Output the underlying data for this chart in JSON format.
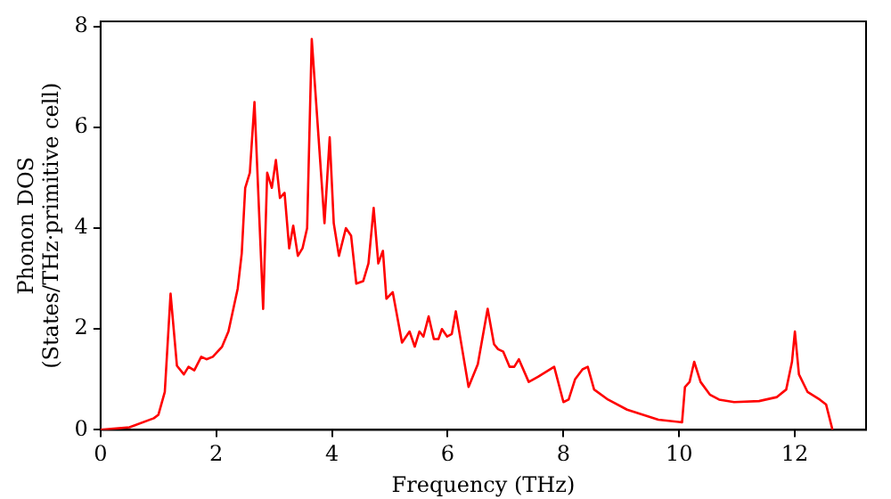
{
  "chart_data": {
    "type": "line",
    "xlabel": "Frequency (THz)",
    "ylabel": "Phonon DOS\n(States/THz·primitive cell)",
    "xlim": [
      0,
      13.23
    ],
    "ylim": [
      0,
      8.1
    ],
    "xticks": [
      0,
      2,
      4,
      6,
      8,
      10,
      12
    ],
    "yticks": [
      0,
      2,
      4,
      6,
      8
    ],
    "grid": false,
    "legend": false,
    "marker": "none",
    "line_style": "solid",
    "series": [
      {
        "color": "#ff0000",
        "x": [
          0,
          0.5,
          0.92,
          1.0,
          1.11,
          1.21,
          1.32,
          1.44,
          1.52,
          1.62,
          1.74,
          1.83,
          1.94,
          2.1,
          2.21,
          2.37,
          2.44,
          2.5,
          2.58,
          2.66,
          2.81,
          2.88,
          2.96,
          3.03,
          3.1,
          3.18,
          3.26,
          3.33,
          3.41,
          3.49,
          3.57,
          3.65,
          3.87,
          3.96,
          4.03,
          4.12,
          4.24,
          4.33,
          4.42,
          4.54,
          4.63,
          4.72,
          4.8,
          4.88,
          4.94,
          5.05,
          5.21,
          5.34,
          5.43,
          5.51,
          5.58,
          5.67,
          5.76,
          5.84,
          5.9,
          5.99,
          6.07,
          6.14,
          6.36,
          6.52,
          6.69,
          6.8,
          6.87,
          6.96,
          7.07,
          7.15,
          7.23,
          7.4,
          7.56,
          7.84,
          8.0,
          8.09,
          8.2,
          8.33,
          8.42,
          8.53,
          8.77,
          9.1,
          9.64,
          10.05,
          10.1,
          10.18,
          10.26,
          10.37,
          10.53,
          10.69,
          10.95,
          11.38,
          11.69,
          11.85,
          11.95,
          12.0,
          12.07,
          12.22,
          12.43,
          12.54,
          12.65
        ],
        "values": [
          0,
          0.05,
          0.23,
          0.3,
          0.75,
          2.7,
          1.27,
          1.1,
          1.25,
          1.18,
          1.45,
          1.4,
          1.45,
          1.65,
          1.95,
          2.8,
          3.5,
          4.8,
          5.1,
          6.5,
          2.4,
          5.1,
          4.8,
          5.35,
          4.6,
          4.7,
          3.6,
          4.05,
          3.45,
          3.6,
          4.0,
          7.75,
          4.1,
          5.8,
          4.1,
          3.45,
          4.0,
          3.85,
          2.9,
          2.95,
          3.3,
          4.4,
          3.3,
          3.55,
          2.6,
          2.73,
          1.73,
          1.95,
          1.65,
          1.95,
          1.85,
          2.25,
          1.8,
          1.8,
          2.0,
          1.85,
          1.9,
          2.35,
          0.85,
          1.3,
          2.4,
          1.7,
          1.6,
          1.55,
          1.25,
          1.25,
          1.4,
          0.95,
          1.05,
          1.25,
          0.55,
          0.6,
          1.0,
          1.2,
          1.25,
          0.8,
          0.6,
          0.4,
          0.2,
          0.15,
          0.85,
          0.95,
          1.35,
          0.95,
          0.7,
          0.6,
          0.55,
          0.57,
          0.65,
          0.8,
          1.35,
          1.95,
          1.1,
          0.75,
          0.6,
          0.5,
          0
        ]
      }
    ]
  }
}
